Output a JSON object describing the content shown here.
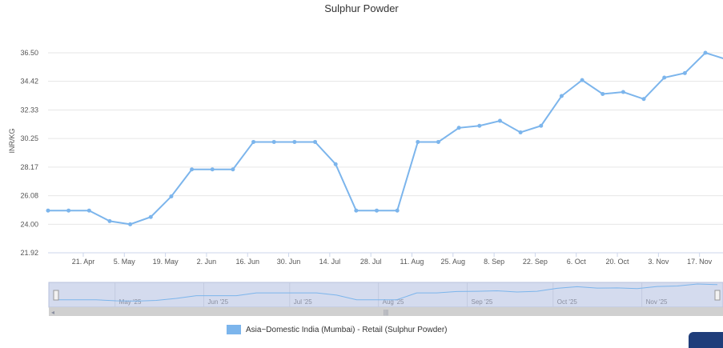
{
  "chart_data": {
    "type": "line",
    "title": "Sulphur Powder",
    "ylabel": "INR/KG",
    "xlabel": "",
    "ylim": [
      21.92,
      36.5
    ],
    "yticks": [
      "21.92",
      "24.00",
      "26.08",
      "28.17",
      "30.25",
      "32.33",
      "34.42",
      "36.50"
    ],
    "xlim": [
      "2025-04-09",
      "2025-11-25"
    ],
    "xticks": [
      {
        "date": "2025-04-21",
        "label": "21. Apr"
      },
      {
        "date": "2025-05-05",
        "label": "5. May"
      },
      {
        "date": "2025-05-19",
        "label": "19. May"
      },
      {
        "date": "2025-06-02",
        "label": "2. Jun"
      },
      {
        "date": "2025-06-16",
        "label": "16. Jun"
      },
      {
        "date": "2025-06-30",
        "label": "30. Jun"
      },
      {
        "date": "2025-07-14",
        "label": "14. Jul"
      },
      {
        "date": "2025-07-28",
        "label": "28. Jul"
      },
      {
        "date": "2025-08-11",
        "label": "11. Aug"
      },
      {
        "date": "2025-08-25",
        "label": "25. Aug"
      },
      {
        "date": "2025-09-08",
        "label": "8. Sep"
      },
      {
        "date": "2025-09-22",
        "label": "22. Sep"
      },
      {
        "date": "2025-10-06",
        "label": "6. Oct"
      },
      {
        "date": "2025-10-20",
        "label": "20. Oct"
      },
      {
        "date": "2025-11-03",
        "label": "3. Nov"
      },
      {
        "date": "2025-11-17",
        "label": "17. Nov"
      }
    ],
    "grid": true,
    "legend_position": "bottom-center",
    "series": [
      {
        "name": "Asia~Domestic India (Mumbai) - Retail (Sulphur Powder)",
        "color": "#7cb5ec",
        "x": [
          "2025-04-09",
          "2025-04-16",
          "2025-04-23",
          "2025-04-30",
          "2025-05-07",
          "2025-05-14",
          "2025-05-21",
          "2025-05-28",
          "2025-06-04",
          "2025-06-11",
          "2025-06-18",
          "2025-06-25",
          "2025-07-02",
          "2025-07-09",
          "2025-07-16",
          "2025-07-23",
          "2025-07-30",
          "2025-08-06",
          "2025-08-13",
          "2025-08-20",
          "2025-08-27",
          "2025-09-03",
          "2025-09-10",
          "2025-09-17",
          "2025-09-24",
          "2025-10-01",
          "2025-10-08",
          "2025-10-15",
          "2025-10-22",
          "2025-10-29",
          "2025-11-05",
          "2025-11-12",
          "2025-11-19",
          "2025-11-26"
        ],
        "values": [
          25.0,
          25.0,
          25.0,
          24.23,
          24.0,
          24.53,
          26.03,
          28.0,
          28.0,
          28.0,
          30.0,
          30.0,
          30.0,
          30.0,
          28.38,
          25.0,
          25.0,
          25.0,
          30.0,
          30.0,
          31.03,
          31.18,
          31.54,
          30.7,
          31.18,
          33.35,
          34.51,
          33.5,
          33.64,
          33.13,
          34.69,
          35.02,
          36.5,
          36.03
        ]
      }
    ],
    "navigator": {
      "labels": [
        {
          "date": "2025-05-01",
          "label": "May '25"
        },
        {
          "date": "2025-06-01",
          "label": "Jun '25"
        },
        {
          "date": "2025-07-01",
          "label": "Jul '25"
        },
        {
          "date": "2025-08-01",
          "label": "Aug '25"
        },
        {
          "date": "2025-09-01",
          "label": "Sep '25"
        },
        {
          "date": "2025-10-01",
          "label": "Oct '25"
        },
        {
          "date": "2025-11-01",
          "label": "Nov '25"
        }
      ],
      "range": [
        "2025-04-09",
        "2025-11-26"
      ]
    }
  }
}
